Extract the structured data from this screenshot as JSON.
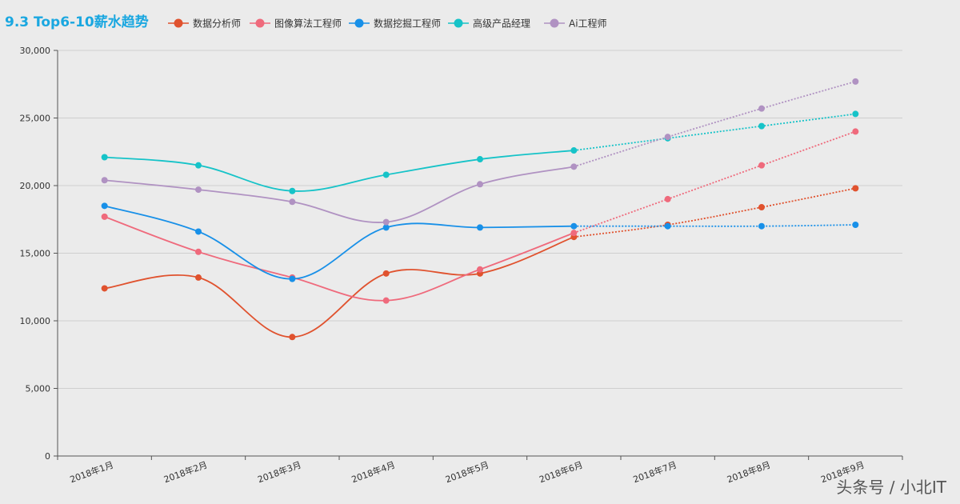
{
  "watermark": "头条号 / 小北IT",
  "chart_data": {
    "type": "line",
    "title": "9.3 Top6-10薪水趋势",
    "title_color": "#1aa7e0",
    "categories": [
      "2018年1月",
      "2018年2月",
      "2018年3月",
      "2018年4月",
      "2018年5月",
      "2018年6月",
      "2018年7月",
      "2018年8月",
      "2018年9月"
    ],
    "ylim": [
      0,
      30000
    ],
    "yticks": [
      0,
      5000,
      10000,
      15000,
      20000,
      25000,
      30000
    ],
    "ytick_labels": [
      "0",
      "5,000",
      "10,000",
      "15,000",
      "20,000",
      "25,000",
      "30,000"
    ],
    "grid": true,
    "legend_position": "top",
    "forecast_from_index": 5,
    "series": [
      {
        "name": "数据分析师",
        "color": "#e0522e",
        "values": [
          12400,
          13200,
          8800,
          13500,
          13500,
          16200,
          17100,
          18400,
          19800
        ]
      },
      {
        "name": "图像算法工程师",
        "color": "#ef6a7c",
        "values": [
          17700,
          15100,
          13200,
          11500,
          13800,
          16500,
          19000,
          21500,
          24000
        ]
      },
      {
        "name": "数据挖掘工程师",
        "color": "#1890e8",
        "values": [
          18500,
          16600,
          13100,
          16900,
          16900,
          17000,
          17000,
          17000,
          17100
        ]
      },
      {
        "name": "高级产品经理",
        "color": "#16c3c8",
        "values": [
          22100,
          21500,
          19600,
          20800,
          21950,
          22600,
          23500,
          24400,
          25300
        ]
      },
      {
        "name": "Ai工程师",
        "color": "#b092c2",
        "values": [
          20400,
          19700,
          18800,
          17300,
          20100,
          21400,
          23600,
          25700,
          27700
        ]
      }
    ]
  }
}
